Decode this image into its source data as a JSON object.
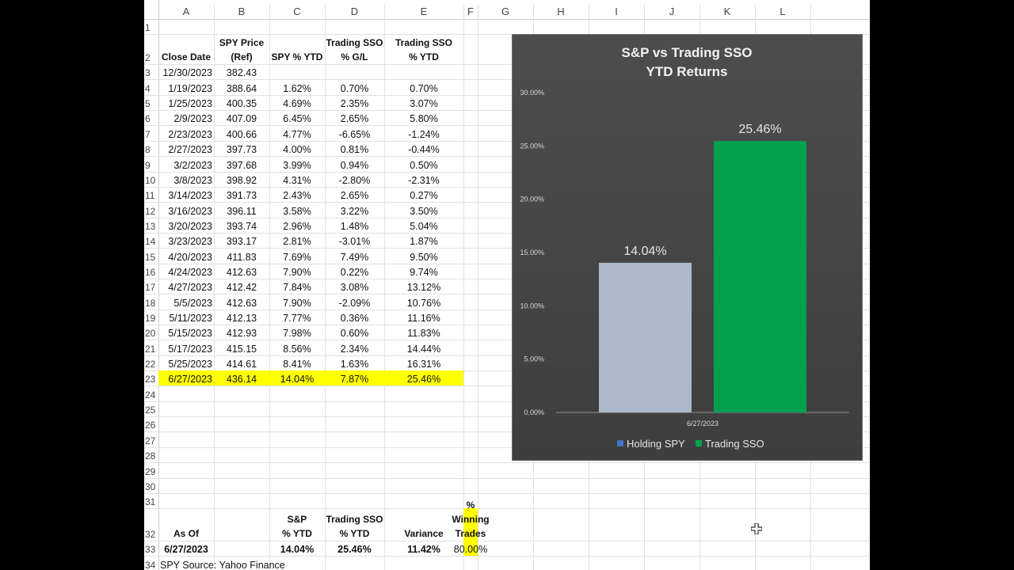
{
  "columns": [
    "A",
    "B",
    "C",
    "D",
    "E",
    "F",
    "G",
    "H",
    "I",
    "J",
    "K",
    "L"
  ],
  "rows_numbers": [
    "1",
    "2",
    "3",
    "4",
    "5",
    "6",
    "7",
    "8",
    "9",
    "10",
    "11",
    "12",
    "13",
    "14",
    "15",
    "16",
    "17",
    "18",
    "19",
    "20",
    "21",
    "22",
    "23",
    "24",
    "25",
    "26",
    "27",
    "28",
    "29",
    "30",
    "31",
    "32",
    "33",
    "34"
  ],
  "headers": {
    "close_date": "Close Date",
    "spy_price_1": "SPY Price",
    "spy_price_2": "(Ref)",
    "spy_ytd": "SPY % YTD",
    "trading_gl_1": "Trading  SSO",
    "trading_gl_2": "% G/L",
    "trading_ytd_1": "Trading SSO",
    "trading_ytd_2": "% YTD"
  },
  "table": [
    [
      "12/30/2023",
      "382.43",
      "",
      "",
      ""
    ],
    [
      "1/19/2023",
      "388.64",
      "1.62%",
      "0.70%",
      "0.70%"
    ],
    [
      "1/25/2023",
      "400.35",
      "4.69%",
      "2.35%",
      "3.07%"
    ],
    [
      "2/9/2023",
      "407.09",
      "6.45%",
      "2.65%",
      "5.80%"
    ],
    [
      "2/23/2023",
      "400.66",
      "4.77%",
      "-6.65%",
      "-1.24%"
    ],
    [
      "2/27/2023",
      "397.73",
      "4.00%",
      "0.81%",
      "-0.44%"
    ],
    [
      "3/2/2023",
      "397.68",
      "3.99%",
      "0.94%",
      "0.50%"
    ],
    [
      "3/8/2023",
      "398.92",
      "4.31%",
      "-2.80%",
      "-2.31%"
    ],
    [
      "3/14/2023",
      "391.73",
      "2.43%",
      "2.65%",
      "0.27%"
    ],
    [
      "3/16/2023",
      "396.11",
      "3.58%",
      "3.22%",
      "3.50%"
    ],
    [
      "3/20/2023",
      "393.74",
      "2.96%",
      "1.48%",
      "5.04%"
    ],
    [
      "3/23/2023",
      "393.17",
      "2.81%",
      "-3.01%",
      "1.87%"
    ],
    [
      "4/20/2023",
      "411.83",
      "7.69%",
      "7.49%",
      "9.50%"
    ],
    [
      "4/24/2023",
      "412.63",
      "7.90%",
      "0.22%",
      "9.74%"
    ],
    [
      "4/27/2023",
      "412.42",
      "7.84%",
      "3.08%",
      "13.12%"
    ],
    [
      "5/5/2023",
      "412.63",
      "7.90%",
      "-2.09%",
      "10.76%"
    ],
    [
      "5/11/2023",
      "412.13",
      "7.77%",
      "0.36%",
      "11.16%"
    ],
    [
      "5/15/2023",
      "412.93",
      "7.98%",
      "0.60%",
      "11.83%"
    ],
    [
      "5/17/2023",
      "415.15",
      "8.56%",
      "2.34%",
      "14.44%"
    ],
    [
      "5/25/2023",
      "414.61",
      "8.41%",
      "1.63%",
      "16.31%"
    ],
    [
      "6/27/2023",
      "436.14",
      "14.04%",
      "7.87%",
      "25.46%"
    ]
  ],
  "summary": {
    "as_of": "As Of",
    "sp_1": "S&P",
    "sp_2": "% YTD",
    "tsso_1": "Trading SSO",
    "tsso_2": "% YTD",
    "variance": "Variance",
    "win_1": "% Winning",
    "win_2": "Trades",
    "date": "6/27/2023",
    "sp_val": "14.04%",
    "tsso_val": "25.46%",
    "variance_val": "11.42%",
    "win_val": "80.00%",
    "source": "SPY Source:  Yahoo Finance"
  },
  "colors": {
    "highlight": "#ffff00",
    "bar_spy": "#adb9ca",
    "bar_sso": "#00a04f",
    "legend_spy": "#4472c4",
    "legend_sso": "#00a04f"
  },
  "chart_data": {
    "type": "bar",
    "title": "S&P vs Trading SSO",
    "subtitle": "YTD Returns",
    "categories": [
      "6/27/2023"
    ],
    "series": [
      {
        "name": "Holding SPY",
        "values": [
          14.04
        ],
        "label": "14.04%"
      },
      {
        "name": "Trading SSO",
        "values": [
          25.46
        ],
        "label": "25.46%"
      }
    ],
    "yticks": [
      "0.00%",
      "5.00%",
      "10.00%",
      "15.00%",
      "20.00%",
      "25.00%",
      "30.00%"
    ],
    "ylim": [
      0,
      30
    ],
    "legend": "bottom",
    "grid": false
  }
}
